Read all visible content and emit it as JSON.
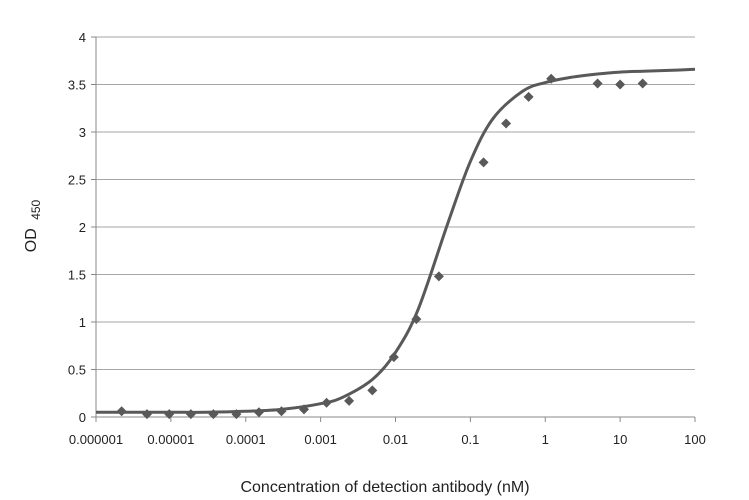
{
  "chart_data": {
    "type": "scatter",
    "title": "",
    "xlabel": "Concentration of detection antibody (nM)",
    "ylabel_main": "OD",
    "ylabel_sub": "450",
    "x_scale": "log",
    "xlim": [
      1e-06,
      100
    ],
    "ylim": [
      0,
      4
    ],
    "grid": "horizontal",
    "x_tick_labels": [
      "0.000001",
      "0.00001",
      "0.0001",
      "0.001",
      "0.01",
      "0.1",
      "1",
      "10",
      "100"
    ],
    "y_tick_labels": [
      "0",
      "0.5",
      "1",
      "1.5",
      "2",
      "2.5",
      "3",
      "3.5",
      "4"
    ],
    "marker_color": "#595959",
    "line_color": "#595959",
    "series": [
      {
        "kind": "points",
        "x": [
          2.2e-06,
          4.8e-06,
          9.5e-06,
          1.85e-05,
          3.7e-05,
          7.5e-05,
          0.00015,
          0.0003,
          0.0006,
          0.0012,
          0.0024,
          0.0049,
          0.0095,
          0.019,
          0.038,
          0.15,
          0.3,
          0.6,
          1.2,
          5,
          10,
          20
        ],
        "y": [
          0.06,
          0.03,
          0.03,
          0.03,
          0.03,
          0.03,
          0.05,
          0.06,
          0.08,
          0.15,
          0.17,
          0.28,
          0.63,
          1.03,
          1.48,
          2.68,
          3.09,
          3.37,
          3.56,
          3.51,
          3.5,
          3.51
        ]
      },
      {
        "kind": "fit",
        "x": [
          1e-06,
          3e-06,
          1e-05,
          3e-05,
          0.0001,
          0.0003,
          0.001,
          0.002,
          0.005,
          0.01,
          0.02,
          0.05,
          0.1,
          0.2,
          0.5,
          1,
          2,
          5,
          10,
          20,
          50,
          100
        ],
        "y": [
          0.05,
          0.05,
          0.05,
          0.05,
          0.06,
          0.08,
          0.14,
          0.21,
          0.4,
          0.68,
          1.13,
          2.04,
          2.69,
          3.14,
          3.43,
          3.52,
          3.57,
          3.61,
          3.63,
          3.64,
          3.65,
          3.66
        ]
      }
    ]
  }
}
